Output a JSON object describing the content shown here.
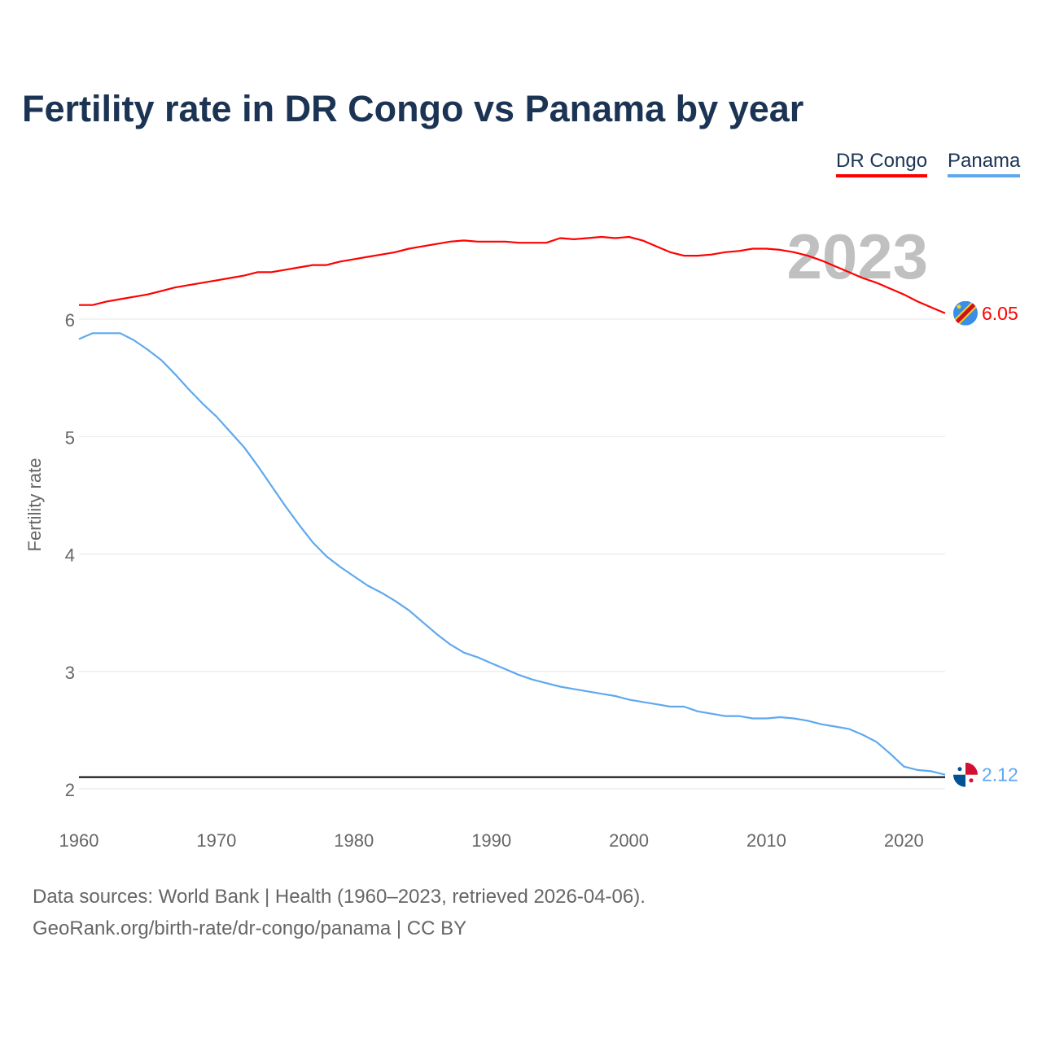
{
  "title": "Fertility rate in DR Congo vs Panama by year",
  "footer": {
    "line1": "Data sources: World Bank | Health (1960–2023, retrieved 2026-04-06).",
    "line2": "GeoRank.org/birth-rate/dr-congo/panama | CC BY"
  },
  "chart_data": {
    "type": "line",
    "title": "Fertility rate in DR Congo vs Panama by year",
    "xlabel": "",
    "ylabel": "Fertility rate",
    "year_watermark": "2023",
    "xlim": [
      1960,
      2023
    ],
    "ylim": [
      2,
      6.8
    ],
    "xticks": [
      "1960",
      "1970",
      "1980",
      "1990",
      "2000",
      "2010",
      "2020"
    ],
    "yticks": [
      "2",
      "3",
      "4",
      "5",
      "6"
    ],
    "grid": true,
    "legend_placement": "top-right",
    "reference_line": 2.1,
    "x": [
      1960,
      1961,
      1962,
      1963,
      1964,
      1965,
      1966,
      1967,
      1968,
      1969,
      1970,
      1971,
      1972,
      1973,
      1974,
      1975,
      1976,
      1977,
      1978,
      1979,
      1980,
      1981,
      1982,
      1983,
      1984,
      1985,
      1986,
      1987,
      1988,
      1989,
      1990,
      1991,
      1992,
      1993,
      1994,
      1995,
      1996,
      1997,
      1998,
      1999,
      2000,
      2001,
      2002,
      2003,
      2004,
      2005,
      2006,
      2007,
      2008,
      2009,
      2010,
      2011,
      2012,
      2013,
      2014,
      2015,
      2016,
      2017,
      2018,
      2019,
      2020,
      2021,
      2022,
      2023
    ],
    "series": [
      {
        "name": "DR Congo",
        "color": "#ff0000",
        "end_label": "6.05",
        "flag": "dr-congo-flag",
        "values": [
          6.12,
          6.12,
          6.15,
          6.17,
          6.19,
          6.21,
          6.24,
          6.27,
          6.29,
          6.31,
          6.33,
          6.35,
          6.37,
          6.4,
          6.4,
          6.42,
          6.44,
          6.46,
          6.46,
          6.49,
          6.51,
          6.53,
          6.55,
          6.57,
          6.6,
          6.62,
          6.64,
          6.66,
          6.67,
          6.66,
          6.66,
          6.66,
          6.65,
          6.65,
          6.65,
          6.69,
          6.68,
          6.69,
          6.7,
          6.69,
          6.7,
          6.67,
          6.62,
          6.57,
          6.54,
          6.54,
          6.55,
          6.57,
          6.58,
          6.6,
          6.6,
          6.59,
          6.57,
          6.54,
          6.5,
          6.45,
          6.4,
          6.35,
          6.31,
          6.26,
          6.21,
          6.15,
          6.1,
          6.05
        ]
      },
      {
        "name": "Panama",
        "color": "#5fa8ef",
        "end_label": "2.12",
        "flag": "panama-flag",
        "values": [
          5.83,
          5.88,
          5.88,
          5.88,
          5.82,
          5.74,
          5.65,
          5.53,
          5.4,
          5.28,
          5.17,
          5.04,
          4.91,
          4.75,
          4.58,
          4.41,
          4.25,
          4.1,
          3.98,
          3.89,
          3.81,
          3.73,
          3.67,
          3.6,
          3.52,
          3.42,
          3.32,
          3.23,
          3.16,
          3.12,
          3.07,
          3.02,
          2.97,
          2.93,
          2.9,
          2.87,
          2.85,
          2.83,
          2.81,
          2.79,
          2.76,
          2.74,
          2.72,
          2.7,
          2.7,
          2.66,
          2.64,
          2.62,
          2.62,
          2.6,
          2.6,
          2.61,
          2.6,
          2.58,
          2.55,
          2.53,
          2.51,
          2.46,
          2.4,
          2.3,
          2.19,
          2.16,
          2.15,
          2.12
        ]
      }
    ]
  }
}
